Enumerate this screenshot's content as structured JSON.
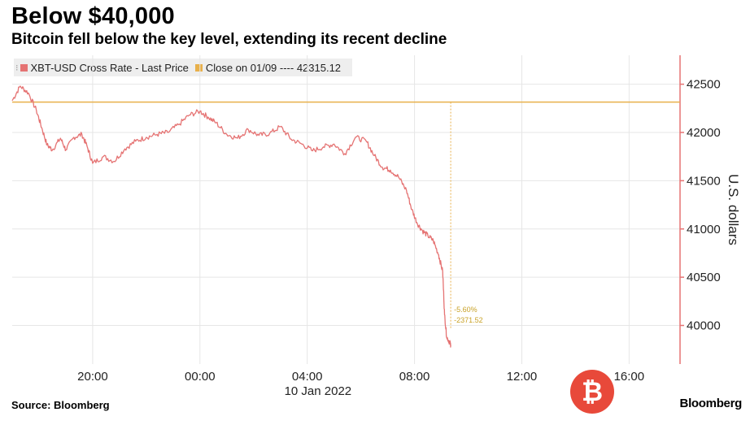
{
  "title": "Below $40,000",
  "subtitle": "Bitcoin fell below the key level, extending its recent decline",
  "legend": {
    "series_label": "XBT-USD Cross Rate - Last Price",
    "close_label": "Close on 01/09 ---- 42315.12"
  },
  "source": "Source: Bloomberg",
  "brand": "Bloomberg",
  "watermark_glyph": "₿",
  "colors": {
    "series": "#e57373",
    "close": "#e8b04a",
    "axis": "#e57373",
    "grid": "#e6e6e6"
  },
  "chart_data": {
    "type": "line",
    "title": "Below $40,000",
    "xlabel": "10 Jan 2022",
    "ylabel": "U.S. dollars",
    "x_unit": "hours since 00:00, 10 Jan 2022",
    "xlim": [
      -7.0,
      17.9
    ],
    "ylim": [
      39600,
      42800
    ],
    "x_ticks": [
      {
        "x": -4,
        "label": "20:00"
      },
      {
        "x": 0,
        "label": "00:00"
      },
      {
        "x": 4,
        "label": "04:00"
      },
      {
        "x": 8,
        "label": "08:00"
      },
      {
        "x": 12,
        "label": "12:00"
      },
      {
        "x": 16,
        "label": "16:00"
      }
    ],
    "y_ticks": [
      40000,
      40500,
      41000,
      41500,
      42000,
      42500
    ],
    "reference_line": {
      "name": "Close on 01/09",
      "value": 42315.12
    },
    "annotations": [
      "-5.60%",
      "-2371.52"
    ],
    "series": [
      {
        "name": "XBT-USD Cross Rate - Last Price",
        "x": [
          -7.0,
          -6.7,
          -6.4,
          -6.1,
          -5.9,
          -5.7,
          -5.5,
          -5.2,
          -5.0,
          -4.7,
          -4.4,
          -4.2,
          -4.0,
          -3.6,
          -3.2,
          -2.8,
          -2.4,
          -2.0,
          -1.6,
          -1.2,
          -0.8,
          -0.4,
          0.0,
          0.3,
          0.6,
          1.0,
          1.4,
          1.8,
          2.2,
          2.6,
          3.0,
          3.4,
          3.8,
          4.2,
          4.6,
          5.0,
          5.4,
          5.8,
          6.2,
          6.5,
          6.8,
          7.1,
          7.4,
          7.7,
          7.9,
          8.1,
          8.3,
          8.5,
          8.7,
          8.9,
          9.05,
          9.12,
          9.2,
          9.3,
          9.35
        ],
        "values": [
          42330,
          42480,
          42410,
          42230,
          42050,
          41870,
          41820,
          41940,
          41820,
          41950,
          41980,
          41850,
          41680,
          41750,
          41700,
          41830,
          41910,
          41950,
          41980,
          42000,
          42080,
          42180,
          42220,
          42160,
          42100,
          41980,
          41940,
          42030,
          41970,
          41990,
          42060,
          41930,
          41880,
          41810,
          41850,
          41880,
          41780,
          41950,
          41910,
          41760,
          41640,
          41610,
          41540,
          41400,
          41200,
          41060,
          40980,
          40930,
          40880,
          40730,
          40560,
          40110,
          39880,
          39830,
          39800
        ]
      }
    ]
  }
}
